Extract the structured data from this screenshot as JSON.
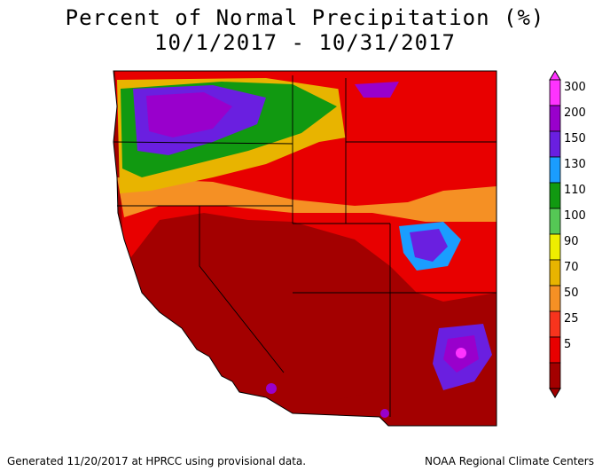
{
  "title_line1": "Percent of Normal Precipitation (%)",
  "title_line2": "10/1/2017 - 10/31/2017",
  "legend": {
    "breaks": [
      "300",
      "200",
      "150",
      "130",
      "110",
      "100",
      "90",
      "70",
      "50",
      "25",
      "5"
    ],
    "colors": [
      "#ff33ff",
      "#9900cc",
      "#6a1fe0",
      "#1a9dff",
      "#119911",
      "#55c855",
      "#eeee00",
      "#e8b400",
      "#f59024",
      "#f7341d",
      "#e80000",
      "#a30000"
    ]
  },
  "footer": {
    "left": "Generated 11/20/2017 at HPRCC using provisional data.",
    "right": "NOAA Regional Climate Centers"
  }
}
